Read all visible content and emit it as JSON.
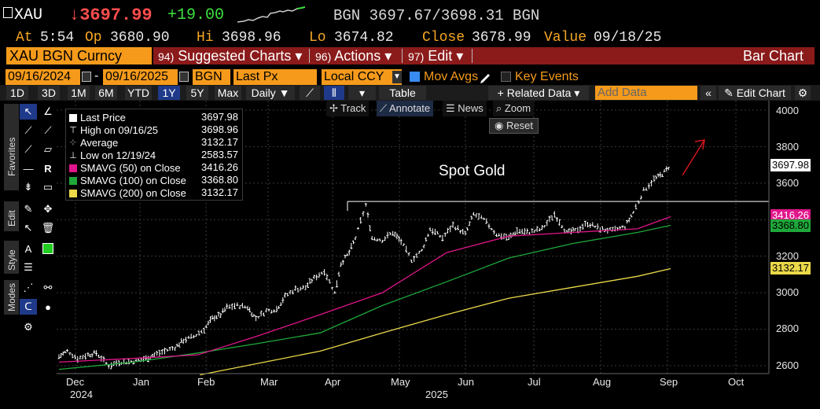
{
  "header": {
    "ticker": "XAU",
    "last_price": "↓3697.99",
    "change": "+19.00",
    "bid_ask": "BGN 3697.67/3698.31 BGN"
  },
  "quote": {
    "at_label": "At",
    "at_value": "5:54",
    "op_label": "Op",
    "op_value": "3680.90",
    "hi_label": "Hi",
    "hi_value": "3698.96",
    "lo_label": "Lo",
    "lo_value": "3674.82",
    "close_label": "Close",
    "close_value": "3678.99",
    "value_label": "Value",
    "value_value": "09/18/25"
  },
  "menubar": {
    "security": "XAU BGN Curncy",
    "suggested_num": "94)",
    "suggested_label": "Suggested Charts ▾",
    "actions_num": "96)",
    "actions_label": "Actions ▾",
    "edit_num": "97)",
    "edit_label": "Edit ▾",
    "chart_type": "Bar Chart"
  },
  "settings": {
    "start_date": "09/16/2024",
    "end_date": "09/16/2025",
    "source": "BGN",
    "field": "Last Px",
    "currency": "Local CCY",
    "mov_avgs_label": "Mov Avgs",
    "mov_avgs_checked": true,
    "key_events_label": "Key Events",
    "key_events_checked": false
  },
  "toolbar": {
    "periods": [
      "1D",
      "3D",
      "1M",
      "6M",
      "YTD",
      "1Y",
      "5Y",
      "Max"
    ],
    "selected_period": "1Y",
    "frequency": "Daily ▼",
    "table_label": "Table",
    "related_data": "+ Related Data ▾",
    "add_data_placeholder": "Add Data",
    "edit_chart": "Edit Chart"
  },
  "palette": {
    "favorites_label": "Favorites",
    "edit_label": "Edit",
    "style_label": "Style",
    "modes_label": "Modes"
  },
  "chart_tools": {
    "track": "Track",
    "annotate": "Annotate",
    "news": "News",
    "zoom": "Zoom",
    "reset": "Reset"
  },
  "legend": {
    "rows": [
      {
        "name": "Last Price",
        "value": "3697.98"
      },
      {
        "name": "High on 09/16/25",
        "value": "3698.96"
      },
      {
        "name": "Average",
        "value": "3132.17"
      },
      {
        "name": "Low on 12/19/24",
        "value": "2583.57"
      },
      {
        "name": "SMAVG (50)  on Close",
        "value": "3416.26"
      },
      {
        "name": "SMAVG (100)  on Close",
        "value": "3368.80"
      },
      {
        "name": "SMAVG (200)  on Close",
        "value": "3132.17"
      }
    ]
  },
  "annotation": "Spot Gold",
  "colors": {
    "price": "#ffffff",
    "sma50": "#e0158a",
    "sma100": "#1fa83a",
    "sma200": "#ebd94a",
    "orange": "#f59a1b",
    "down_red": "#ff4d4d",
    "up_green": "#3de03d",
    "arrow": "#d4161b"
  },
  "chart_data": {
    "type": "bar",
    "title": "",
    "annotation": "Spot Gold",
    "horizontal_line": 3500,
    "ylim": [
      2550,
      4050
    ],
    "y_ticks": [
      2600,
      2800,
      3000,
      3200,
      3400,
      3600,
      3800,
      4000
    ],
    "x_tick_labels": [
      "Dec",
      "Jan",
      "Feb",
      "Mar",
      "Apr",
      "May",
      "Jun",
      "Jul",
      "Aug",
      "Sep",
      "Oct"
    ],
    "year_labels": [
      "2024",
      "2025"
    ],
    "axis_tags": [
      "3697.98",
      "3416.26",
      "3368.80",
      "3132.17"
    ],
    "series": [
      {
        "name": "Last Price",
        "type": "bar",
        "x": [
          "2024-11-25",
          "2024-11-29",
          "2024-12-04",
          "2024-12-09",
          "2024-12-13",
          "2024-12-19",
          "2024-12-24",
          "2024-12-31",
          "2025-01-06",
          "2025-01-10",
          "2025-01-15",
          "2025-01-20",
          "2025-01-24",
          "2025-01-29",
          "2025-02-03",
          "2025-02-07",
          "2025-02-11",
          "2025-02-14",
          "2025-02-19",
          "2025-02-24",
          "2025-02-28",
          "2025-03-05",
          "2025-03-10",
          "2025-03-14",
          "2025-03-19",
          "2025-03-24",
          "2025-03-28",
          "2025-04-02",
          "2025-04-07",
          "2025-04-10",
          "2025-04-14",
          "2025-04-17",
          "2025-04-22",
          "2025-04-25",
          "2025-04-30",
          "2025-05-05",
          "2025-05-09",
          "2025-05-14",
          "2025-05-19",
          "2025-05-23",
          "2025-05-29",
          "2025-06-03",
          "2025-06-09",
          "2025-06-13",
          "2025-06-18",
          "2025-06-24",
          "2025-06-30",
          "2025-07-04",
          "2025-07-10",
          "2025-07-16",
          "2025-07-22",
          "2025-07-28",
          "2025-08-01",
          "2025-08-07",
          "2025-08-13",
          "2025-08-19",
          "2025-08-25",
          "2025-08-29",
          "2025-09-03",
          "2025-09-08",
          "2025-09-12",
          "2025-09-16"
        ],
        "values": [
          2650,
          2680,
          2640,
          2660,
          2670,
          2600,
          2620,
          2625,
          2640,
          2660,
          2680,
          2700,
          2740,
          2760,
          2800,
          2860,
          2880,
          2920,
          2930,
          2920,
          2860,
          2900,
          2910,
          2980,
          3020,
          3030,
          3080,
          3120,
          3000,
          3160,
          3220,
          3300,
          3480,
          3300,
          3290,
          3330,
          3280,
          3180,
          3230,
          3350,
          3300,
          3370,
          3320,
          3430,
          3400,
          3320,
          3300,
          3340,
          3330,
          3350,
          3430,
          3330,
          3340,
          3380,
          3350,
          3340,
          3360,
          3440,
          3560,
          3620,
          3650,
          3697.98
        ]
      },
      {
        "name": "SMAVG (50)",
        "type": "line",
        "x": [
          "2024-11-25",
          "2024-12-31",
          "2025-01-31",
          "2025-02-28",
          "2025-03-31",
          "2025-04-30",
          "2025-05-31",
          "2025-06-30",
          "2025-07-31",
          "2025-08-31",
          "2025-09-16"
        ],
        "values": [
          2620,
          2640,
          2660,
          2760,
          2880,
          3000,
          3220,
          3310,
          3330,
          3350,
          3416.26
        ]
      },
      {
        "name": "SMAVG (100)",
        "type": "line",
        "x": [
          "2024-11-25",
          "2024-12-31",
          "2025-01-31",
          "2025-02-28",
          "2025-03-31",
          "2025-04-30",
          "2025-05-31",
          "2025-06-30",
          "2025-07-31",
          "2025-08-31",
          "2025-09-16"
        ],
        "values": [
          2580,
          2620,
          2670,
          2720,
          2780,
          2930,
          3060,
          3190,
          3270,
          3330,
          3368.8
        ]
      },
      {
        "name": "SMAVG (200)",
        "type": "line",
        "x": [
          "2025-02-01",
          "2025-03-31",
          "2025-04-30",
          "2025-05-31",
          "2025-06-30",
          "2025-07-31",
          "2025-08-31",
          "2025-09-16"
        ],
        "values": [
          2550,
          2680,
          2780,
          2880,
          2970,
          3030,
          3090,
          3132.17
        ]
      }
    ]
  }
}
